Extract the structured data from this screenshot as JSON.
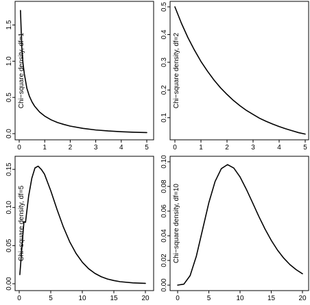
{
  "chart_data": [
    {
      "type": "line",
      "ylabel": "Chi−square density, df=1",
      "xlim": [
        0,
        5
      ],
      "ylim": [
        0,
        1.75
      ],
      "xticks": [
        0,
        1,
        2,
        3,
        4,
        5
      ],
      "xtick_labels": [
        "0",
        "1",
        "2",
        "3",
        "4",
        "5"
      ],
      "yticks": [
        0.0,
        0.5,
        1.0,
        1.5
      ],
      "ytick_labels": [
        "0.0",
        "0.5",
        "1.0",
        "1.5"
      ],
      "series": [
        {
          "x": [
            0.05,
            0.1,
            0.15,
            0.2,
            0.3,
            0.4,
            0.5,
            0.6,
            0.8,
            1.0,
            1.25,
            1.5,
            1.75,
            2.0,
            2.5,
            3.0,
            3.5,
            4.0,
            4.5,
            5.0
          ],
          "values": [
            1.7,
            1.2,
            0.966,
            0.828,
            0.627,
            0.516,
            0.439,
            0.381,
            0.298,
            0.242,
            0.191,
            0.154,
            0.127,
            0.104,
            0.073,
            0.051,
            0.037,
            0.027,
            0.02,
            0.015
          ]
        }
      ]
    },
    {
      "type": "line",
      "ylabel": "Chi−square density, df=2",
      "xlim": [
        0,
        5
      ],
      "ylim": [
        0.04,
        0.5
      ],
      "xticks": [
        0,
        1,
        2,
        3,
        4,
        5
      ],
      "xtick_labels": [
        "0",
        "1",
        "2",
        "3",
        "4",
        "5"
      ],
      "yticks": [
        0.1,
        0.2,
        0.3,
        0.4,
        0.5
      ],
      "ytick_labels": [
        "0.1",
        "0.2",
        "0.3",
        "0.4",
        "0.5"
      ],
      "series": [
        {
          "x": [
            0,
            0.25,
            0.5,
            0.75,
            1.0,
            1.25,
            1.5,
            1.75,
            2.0,
            2.25,
            2.5,
            2.75,
            3.0,
            3.25,
            3.5,
            3.75,
            4.0,
            4.25,
            4.5,
            4.75,
            5.0
          ],
          "values": [
            0.5,
            0.441,
            0.389,
            0.344,
            0.303,
            0.268,
            0.236,
            0.208,
            0.184,
            0.162,
            0.143,
            0.126,
            0.112,
            0.098,
            0.087,
            0.077,
            0.068,
            0.06,
            0.053,
            0.046,
            0.041
          ]
        }
      ]
    },
    {
      "type": "line",
      "ylabel": "Chi−square density, df=5",
      "xlim": [
        0,
        20
      ],
      "ylim": [
        0,
        0.16
      ],
      "xticks": [
        0,
        5,
        10,
        15,
        20
      ],
      "xtick_labels": [
        "0",
        "5",
        "10",
        "15",
        "20"
      ],
      "yticks": [
        0.0,
        0.05,
        0.1,
        0.15
      ],
      "ytick_labels": [
        "0.00",
        "0.05",
        "0.10",
        "0.15"
      ],
      "series": [
        {
          "x": [
            0.1,
            0.25,
            0.5,
            0.75,
            1.0,
            1.5,
            2.0,
            2.5,
            3.0,
            3.5,
            4.0,
            5.0,
            6.0,
            7.0,
            8.0,
            9.0,
            10.0,
            11.0,
            12.0,
            13.0,
            14.0,
            15.0,
            16.0,
            18.0,
            20.0
          ],
          "values": [
            0.012,
            0.028,
            0.0553,
            0.0813,
            0.0807,
            0.1152,
            0.1384,
            0.1519,
            0.1542,
            0.15,
            0.1439,
            0.122,
            0.0973,
            0.0744,
            0.0551,
            0.0399,
            0.0283,
            0.0197,
            0.0136,
            0.0092,
            0.0062,
            0.0042,
            0.0027,
            0.0012,
            0.0005
          ]
        }
      ]
    },
    {
      "type": "line",
      "ylabel": "Chi−square density, df=10",
      "xlim": [
        0,
        20
      ],
      "ylim": [
        0,
        0.1
      ],
      "xticks": [
        0,
        5,
        10,
        15,
        20
      ],
      "xtick_labels": [
        "0",
        "5",
        "10",
        "15",
        "20"
      ],
      "yticks": [
        0.0,
        0.02,
        0.04,
        0.06,
        0.08,
        0.1
      ],
      "ytick_labels": [
        "0.00",
        "0.02",
        "0.04",
        "0.06",
        "0.08",
        "0.10"
      ],
      "series": [
        {
          "x": [
            0,
            1,
            2,
            3,
            4,
            5,
            6,
            7,
            8,
            9,
            10,
            11,
            12,
            13,
            14,
            15,
            16,
            17,
            18,
            19,
            20
          ],
          "values": [
            0.0,
            0.0008,
            0.0077,
            0.0235,
            0.0451,
            0.0668,
            0.084,
            0.0944,
            0.0977,
            0.0949,
            0.0877,
            0.0778,
            0.0669,
            0.0558,
            0.0455,
            0.0363,
            0.0284,
            0.0219,
            0.0166,
            0.0125,
            0.0092
          ]
        }
      ]
    }
  ]
}
